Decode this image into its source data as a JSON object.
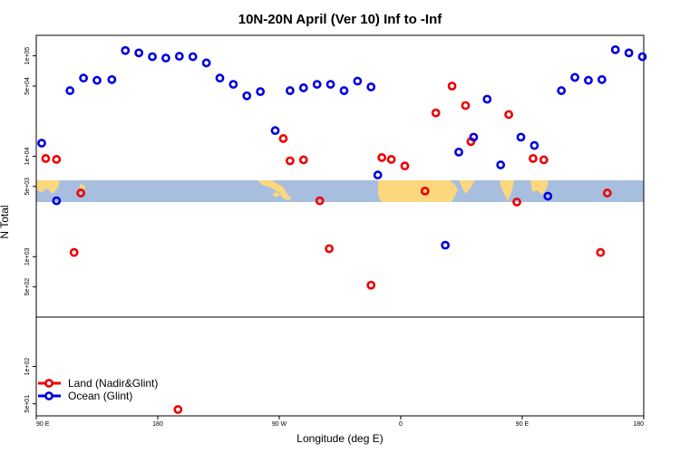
{
  "chart_data": {
    "type": "scatter",
    "title": "10N-20N April (Ver 10)   Inf to -Inf",
    "xlabel": "Longitude (deg E)",
    "ylabel": "N Total",
    "x_ticks": [
      {
        "value": 90,
        "label": "90 E"
      },
      {
        "value": 180,
        "label": "180"
      },
      {
        "value": 270,
        "label": "90 W"
      },
      {
        "value": 360,
        "label": "0"
      },
      {
        "value": 450,
        "label": "90 E"
      },
      {
        "value": 540,
        "label": "180"
      }
    ],
    "xlim": [
      90,
      540
    ],
    "upper_panel": {
      "scale": "log",
      "ylim": [
        250,
        160000
      ],
      "y_ticks": [
        {
          "value": 500,
          "label": "5e+02"
        },
        {
          "value": 1000,
          "label": "1e+03"
        },
        {
          "value": 5000,
          "label": "5e+03"
        },
        {
          "value": 10000,
          "label": "1e+04"
        },
        {
          "value": 50000,
          "label": "5e+04"
        },
        {
          "value": 100000,
          "label": "1e+05"
        }
      ]
    },
    "lower_panel": {
      "scale": "log",
      "ylim": [
        40,
        250
      ],
      "y_ticks": [
        {
          "value": 50,
          "label": "5e+01"
        },
        {
          "value": 100,
          "label": "1e+02"
        }
      ]
    },
    "series": [
      {
        "name": "Land (Nadir&Glint)",
        "color": "#ee0000",
        "points": [
          [
            97,
            9500
          ],
          [
            105,
            9300
          ],
          [
            118,
            1100
          ],
          [
            123,
            4300
          ],
          [
            195,
            45
          ],
          [
            273,
            15000
          ],
          [
            278,
            9000
          ],
          [
            288,
            9200
          ],
          [
            300,
            3600
          ],
          [
            307,
            1200
          ],
          [
            338,
            520
          ],
          [
            346,
            9700
          ],
          [
            353,
            9300
          ],
          [
            363,
            8000
          ],
          [
            378,
            4500
          ],
          [
            386,
            27000
          ],
          [
            398,
            50000
          ],
          [
            408,
            32000
          ],
          [
            412,
            14000
          ],
          [
            440,
            26000
          ],
          [
            446,
            3500
          ],
          [
            458,
            9500
          ],
          [
            466,
            9200
          ],
          [
            508,
            1100
          ],
          [
            513,
            4300
          ]
        ]
      },
      {
        "name": "Ocean (Glint)",
        "color": "#0000dd",
        "points": [
          [
            94,
            13500
          ],
          [
            105,
            3600
          ],
          [
            115,
            45000
          ],
          [
            125,
            60000
          ],
          [
            135,
            57000
          ],
          [
            146,
            58000
          ],
          [
            156,
            113000
          ],
          [
            166,
            107000
          ],
          [
            176,
            98000
          ],
          [
            186,
            95000
          ],
          [
            196,
            99000
          ],
          [
            206,
            98000
          ],
          [
            216,
            85000
          ],
          [
            226,
            60000
          ],
          [
            236,
            52000
          ],
          [
            246,
            40000
          ],
          [
            256,
            44000
          ],
          [
            267,
            18000
          ],
          [
            278,
            45000
          ],
          [
            288,
            48000
          ],
          [
            298,
            52000
          ],
          [
            308,
            52000
          ],
          [
            318,
            45000
          ],
          [
            328,
            56000
          ],
          [
            338,
            49000
          ],
          [
            343,
            6500
          ],
          [
            393,
            1300
          ],
          [
            403,
            11000
          ],
          [
            414,
            15500
          ],
          [
            424,
            37000
          ],
          [
            434,
            8200
          ],
          [
            449,
            15500
          ],
          [
            459,
            12800
          ],
          [
            469,
            4000
          ],
          [
            479,
            45000
          ],
          [
            489,
            61000
          ],
          [
            499,
            57000
          ],
          [
            509,
            58000
          ],
          [
            519,
            115000
          ],
          [
            529,
            107000
          ],
          [
            539,
            98000
          ]
        ]
      }
    ],
    "legend": {
      "placement": "bottom-left",
      "entries": [
        {
          "label": "Land (Nadir&Glint)",
          "color": "#ee0000"
        },
        {
          "label": "Ocean (Glint)",
          "color": "#0000dd"
        }
      ]
    },
    "background_map_band": {
      "ocean_color": "#a7bedf",
      "land_color": "#fbd77d"
    }
  }
}
